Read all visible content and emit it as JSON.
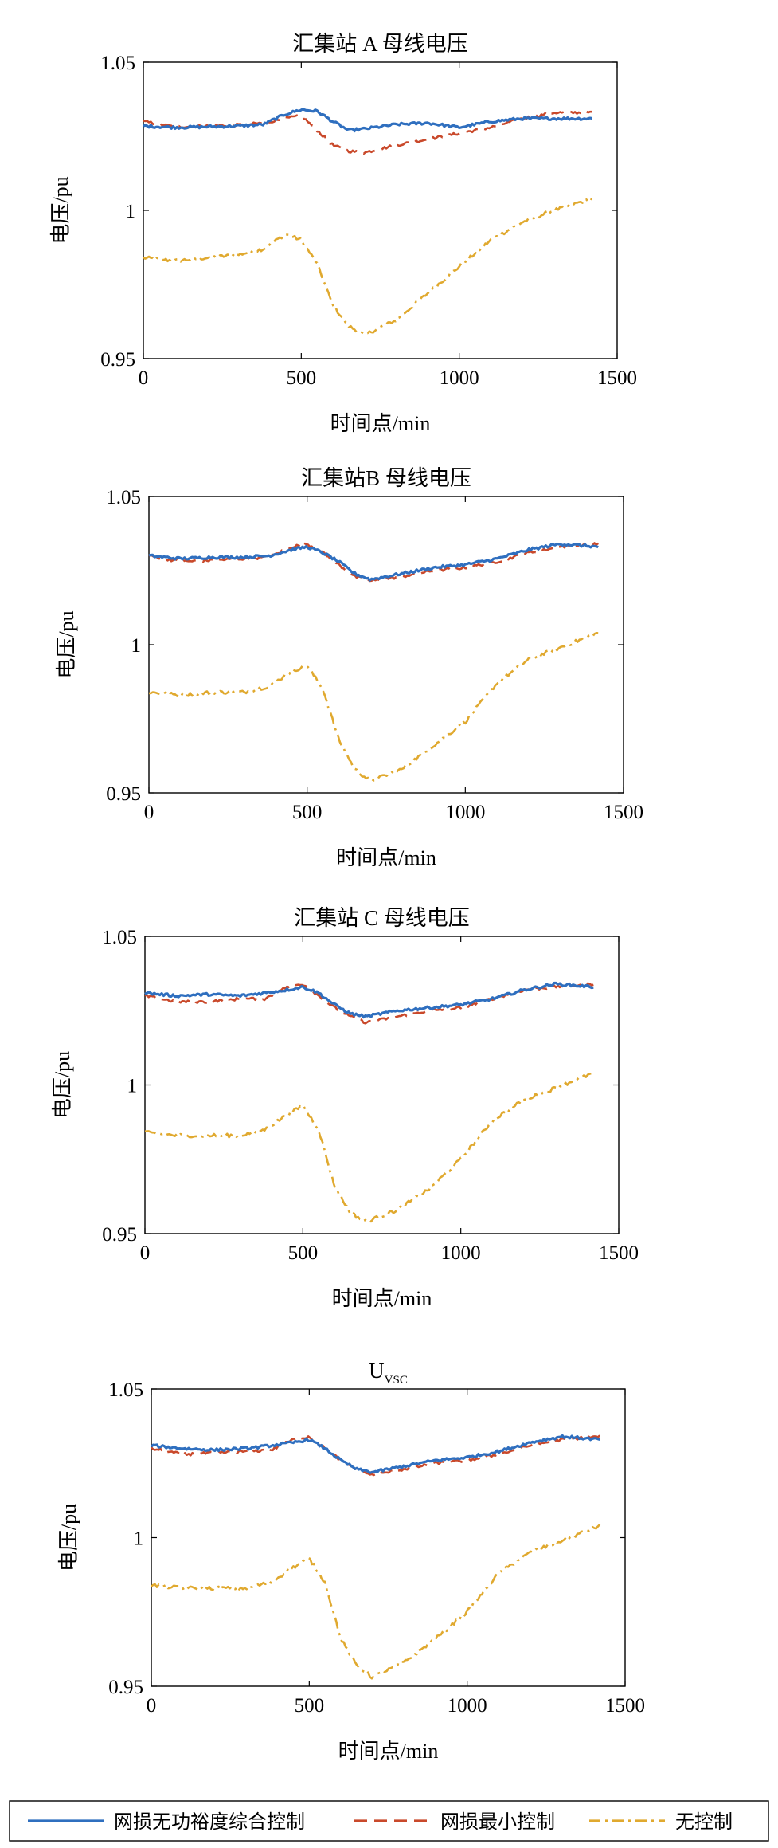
{
  "legend": {
    "placement": "bottom",
    "entries": [
      {
        "label": "网损无功裕度综合控制",
        "color": "#2f6fbf",
        "style": "solid"
      },
      {
        "label": "网损最小控制",
        "color": "#c9492b",
        "style": "dashed"
      },
      {
        "label": "无控制",
        "color": "#e0a92f",
        "style": "dash-dot"
      }
    ]
  },
  "chart_data": [
    {
      "type": "line",
      "title": "汇集站 A 母线电压",
      "xlabel": "时间点/min",
      "ylabel": "电压/pu",
      "xlim": [
        0,
        1500
      ],
      "ylim": [
        0.95,
        1.05
      ],
      "xticks": [
        0,
        500,
        1000,
        1500
      ],
      "xtick_labels": [
        "0",
        "500",
        "1000",
        "1500"
      ],
      "yticks": [
        0.95,
        1,
        1.05
      ],
      "ytick_labels": [
        "0.95",
        "1",
        "1.05"
      ],
      "grid": false,
      "x": [
        0,
        100,
        200,
        300,
        380,
        450,
        500,
        550,
        600,
        650,
        700,
        800,
        900,
        1000,
        1100,
        1200,
        1300,
        1420
      ],
      "series": [
        {
          "name": "网损无功裕度综合控制",
          "values": [
            1.0285,
            1.028,
            1.0282,
            1.0285,
            1.029,
            1.0325,
            1.034,
            1.0335,
            1.03,
            1.027,
            1.0275,
            1.029,
            1.0295,
            1.028,
            1.03,
            1.031,
            1.031,
            1.031
          ]
        },
        {
          "name": "网损最小控制",
          "values": [
            1.03,
            1.0282,
            1.0285,
            1.0288,
            1.0295,
            1.031,
            1.032,
            1.027,
            1.022,
            1.02,
            1.0195,
            1.022,
            1.024,
            1.026,
            1.028,
            1.031,
            1.033,
            1.033
          ]
        },
        {
          "name": "无控制",
          "values": [
            0.984,
            0.983,
            0.984,
            0.985,
            0.987,
            0.992,
            0.99,
            0.982,
            0.968,
            0.961,
            0.958,
            0.963,
            0.972,
            0.981,
            0.99,
            0.996,
            1.0,
            1.004
          ]
        }
      ]
    },
    {
      "type": "line",
      "title": "汇集站B 母线电压",
      "xlabel": "时间点/min",
      "ylabel": "电压/pu",
      "xlim": [
        0,
        1500
      ],
      "ylim": [
        0.95,
        1.05
      ],
      "xticks": [
        0,
        500,
        1000,
        1500
      ],
      "xtick_labels": [
        "0",
        "500",
        "1000",
        "1500"
      ],
      "yticks": [
        0.95,
        1,
        1.05
      ],
      "ytick_labels": [
        "0.95",
        "1",
        "1.05"
      ],
      "grid": false,
      "x": [
        0,
        100,
        200,
        300,
        380,
        450,
        500,
        550,
        600,
        650,
        700,
        800,
        900,
        1000,
        1100,
        1200,
        1300,
        1420
      ],
      "series": [
        {
          "name": "网损无功裕度综合控制",
          "values": [
            1.03,
            1.029,
            1.0295,
            1.0295,
            1.03,
            1.032,
            1.033,
            1.031,
            1.028,
            1.024,
            1.022,
            1.024,
            1.026,
            1.027,
            1.029,
            1.032,
            1.034,
            1.033
          ]
        },
        {
          "name": "网损最小控制",
          "values": [
            1.03,
            1.028,
            1.0285,
            1.029,
            1.0295,
            1.033,
            1.034,
            1.031,
            1.027,
            1.023,
            1.0215,
            1.023,
            1.025,
            1.026,
            1.028,
            1.031,
            1.033,
            1.034
          ]
        },
        {
          "name": "无控制",
          "values": [
            0.984,
            0.983,
            0.984,
            0.984,
            0.986,
            0.991,
            0.993,
            0.985,
            0.968,
            0.958,
            0.954,
            0.958,
            0.966,
            0.974,
            0.987,
            0.995,
            0.999,
            1.004
          ]
        }
      ]
    },
    {
      "type": "line",
      "title": "汇集站 C 母线电压",
      "xlabel": "时间点/min",
      "ylabel": "电压/pu",
      "xlim": [
        0,
        1500
      ],
      "ylim": [
        0.95,
        1.05
      ],
      "xticks": [
        0,
        500,
        1000,
        1500
      ],
      "xtick_labels": [
        "0",
        "500",
        "1000",
        "1500"
      ],
      "yticks": [
        0.95,
        1,
        1.05
      ],
      "ytick_labels": [
        "0.95",
        "1",
        "1.05"
      ],
      "grid": false,
      "x": [
        0,
        100,
        200,
        300,
        380,
        450,
        500,
        550,
        600,
        650,
        700,
        800,
        900,
        1000,
        1100,
        1200,
        1300,
        1420
      ],
      "series": [
        {
          "name": "网损无功裕度综合控制",
          "values": [
            1.031,
            1.03,
            1.0305,
            1.03,
            1.031,
            1.032,
            1.033,
            1.031,
            1.027,
            1.024,
            1.023,
            1.025,
            1.026,
            1.027,
            1.029,
            1.032,
            1.034,
            1.033
          ]
        },
        {
          "name": "网损最小控制",
          "values": [
            1.03,
            1.028,
            1.028,
            1.029,
            1.029,
            1.033,
            1.034,
            1.03,
            1.026,
            1.023,
            1.021,
            1.023,
            1.025,
            1.026,
            1.029,
            1.032,
            1.033,
            1.034
          ]
        },
        {
          "name": "无控制",
          "values": [
            0.984,
            0.983,
            0.983,
            0.983,
            0.985,
            0.99,
            0.993,
            0.985,
            0.966,
            0.957,
            0.954,
            0.958,
            0.965,
            0.975,
            0.988,
            0.995,
            0.999,
            1.004
          ]
        }
      ]
    },
    {
      "type": "line",
      "title": "U",
      "title_subscript": "VSC",
      "xlabel": "时间点/min",
      "ylabel": "电压/pu",
      "xlim": [
        0,
        1500
      ],
      "ylim": [
        0.95,
        1.05
      ],
      "xticks": [
        0,
        500,
        1000,
        1500
      ],
      "xtick_labels": [
        "0",
        "500",
        "1000",
        "1500"
      ],
      "yticks": [
        0.95,
        1,
        1.05
      ],
      "ytick_labels": [
        "0.95",
        "1",
        "1.05"
      ],
      "grid": false,
      "x": [
        0,
        100,
        200,
        300,
        380,
        450,
        500,
        550,
        600,
        650,
        700,
        800,
        900,
        1000,
        1100,
        1200,
        1300,
        1420
      ],
      "series": [
        {
          "name": "网损无功裕度综合控制",
          "values": [
            1.031,
            1.03,
            1.0295,
            1.03,
            1.031,
            1.032,
            1.033,
            1.03,
            1.026,
            1.023,
            1.022,
            1.024,
            1.026,
            1.027,
            1.029,
            1.032,
            1.034,
            1.033
          ]
        },
        {
          "name": "网损最小控制",
          "values": [
            1.03,
            1.028,
            1.0285,
            1.029,
            1.0295,
            1.033,
            1.034,
            1.03,
            1.026,
            1.023,
            1.021,
            1.023,
            1.025,
            1.026,
            1.028,
            1.031,
            1.033,
            1.034
          ]
        },
        {
          "name": "无控制",
          "values": [
            0.984,
            0.983,
            0.983,
            0.983,
            0.985,
            0.99,
            0.993,
            0.985,
            0.966,
            0.957,
            0.953,
            0.958,
            0.966,
            0.975,
            0.988,
            0.995,
            0.999,
            1.004
          ]
        }
      ]
    }
  ]
}
